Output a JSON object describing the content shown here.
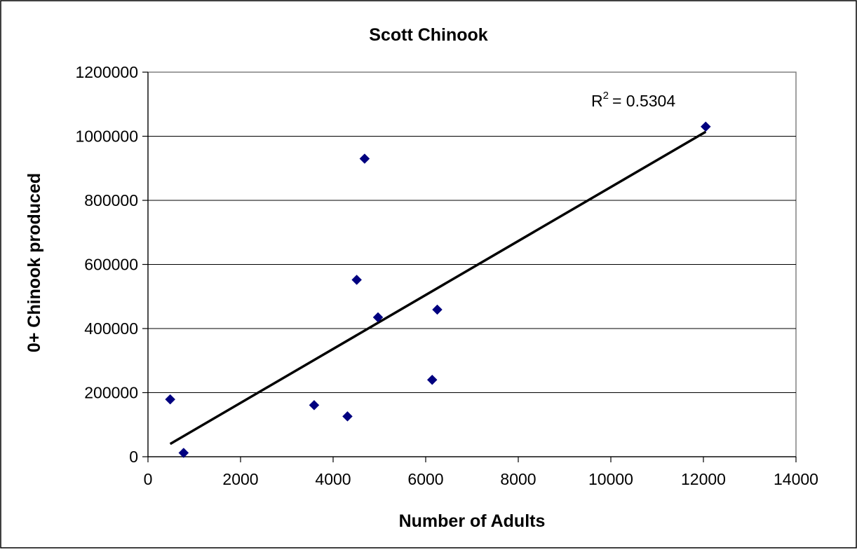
{
  "chart_data": {
    "type": "scatter",
    "title": "Scott Chinook",
    "xlabel": "Number of Adults",
    "ylabel": "0+ Chinook produced",
    "xlim": [
      0,
      14000
    ],
    "ylim": [
      0,
      1200000
    ],
    "xticks": [
      "0",
      "2000",
      "4000",
      "6000",
      "8000",
      "10000",
      "12000",
      "14000"
    ],
    "yticks": [
      "0",
      "200000",
      "400000",
      "600000",
      "800000",
      "1000000",
      "1200000"
    ],
    "grid": "horizontal",
    "marker_color": "#000080",
    "series": [
      {
        "points": [
          {
            "x": 480,
            "y": 179000
          },
          {
            "x": 770,
            "y": 12000
          },
          {
            "x": 3590,
            "y": 161000
          },
          {
            "x": 4310,
            "y": 126000
          },
          {
            "x": 4510,
            "y": 552000
          },
          {
            "x": 4680,
            "y": 930000
          },
          {
            "x": 4970,
            "y": 435000
          },
          {
            "x": 6140,
            "y": 240000
          },
          {
            "x": 6250,
            "y": 459000
          },
          {
            "x": 12050,
            "y": 1030000
          }
        ]
      }
    ],
    "trendline": {
      "type": "linear",
      "x": [
        480,
        12050
      ],
      "y": [
        40000,
        1014000
      ],
      "color": "#000000",
      "r2_label": "= 0.5304",
      "r2_symbol": "R",
      "r2_superscript": "2"
    }
  }
}
